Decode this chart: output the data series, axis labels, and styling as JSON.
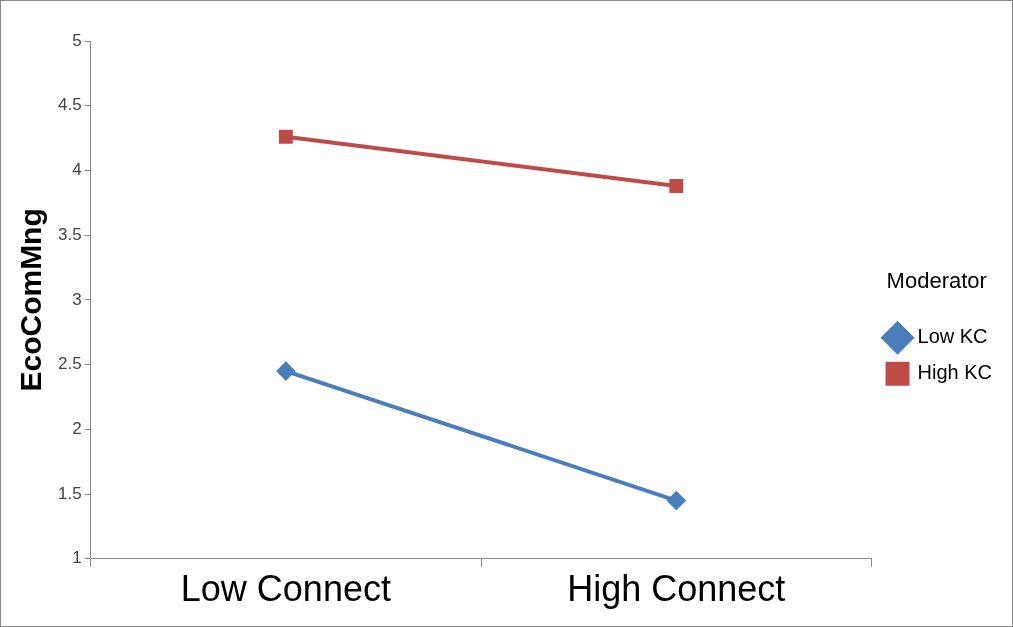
{
  "chart_data": {
    "type": "line",
    "ylabel": "EcoComMng",
    "legend_title": "Moderator",
    "legend": "right",
    "grid": false,
    "categories": [
      "Low Connect",
      "High Connect"
    ],
    "ylim": [
      1,
      5
    ],
    "yticks": [
      1,
      1.5,
      2,
      2.5,
      3,
      3.5,
      4,
      4.5,
      5
    ],
    "series": [
      {
        "name": "Low KC",
        "color": "#4a7ebb",
        "marker": "diamond",
        "values": [
          2.45,
          1.45
        ]
      },
      {
        "name": "High KC",
        "color": "#be4b48",
        "marker": "square",
        "values": [
          4.26,
          3.88
        ]
      }
    ]
  }
}
